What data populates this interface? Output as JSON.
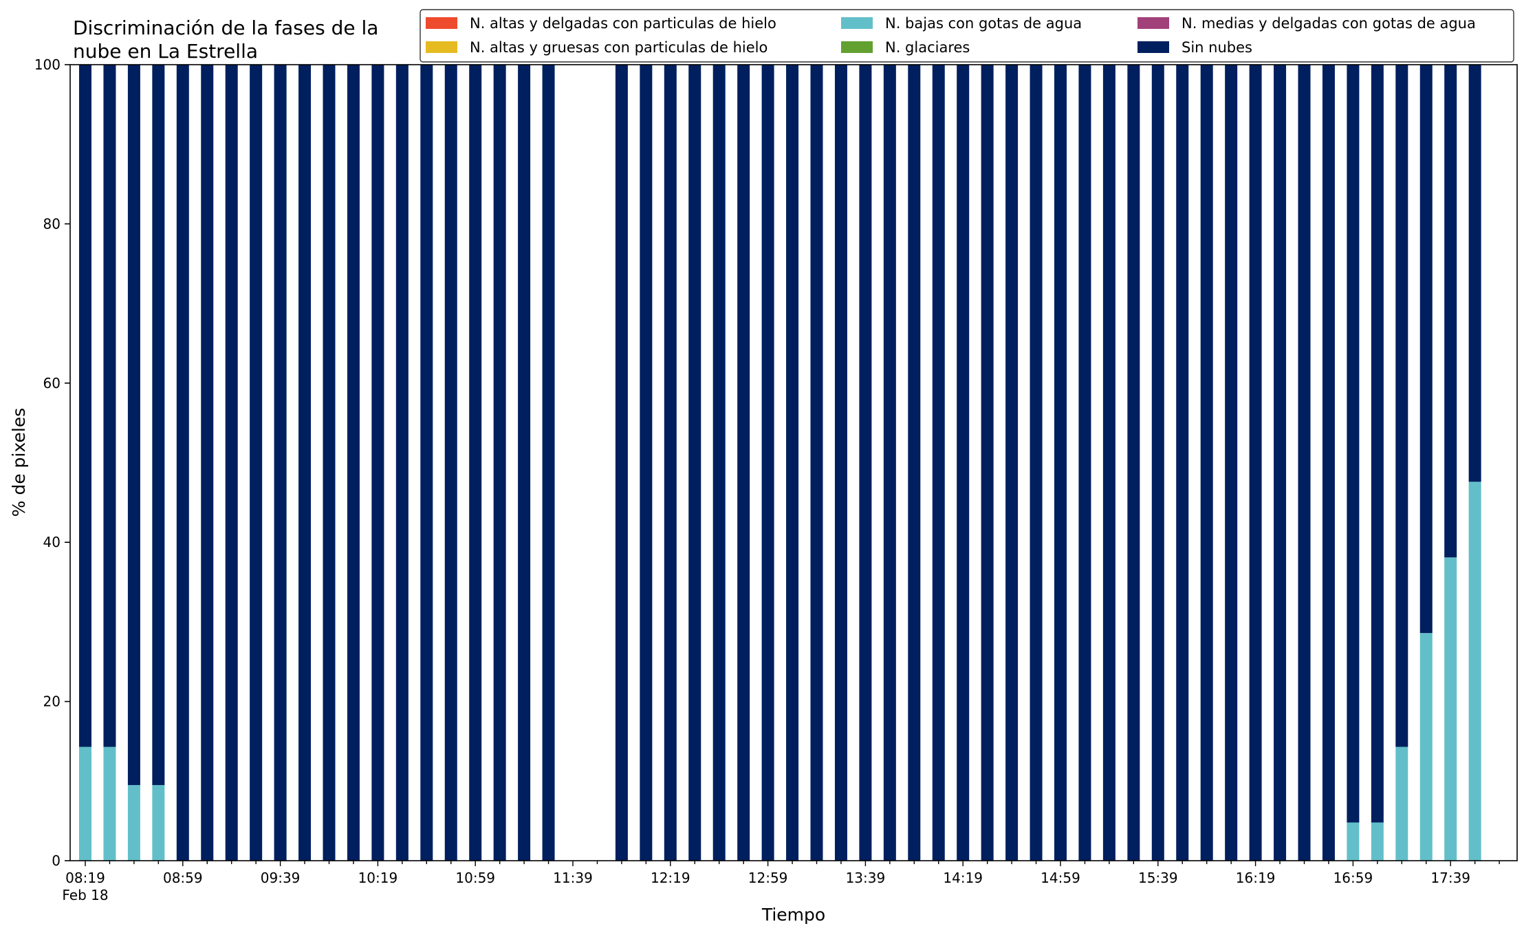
{
  "chart_data": {
    "type": "bar",
    "stacked": true,
    "title_lines": [
      "Discriminación de la fases de la",
      "nube en La Estrella"
    ],
    "xlabel": "Tiempo",
    "ylabel": "% de pixeles",
    "ylim": [
      0,
      100
    ],
    "yticks": [
      0,
      20,
      40,
      60,
      80,
      100
    ],
    "legend_placement": "top-right",
    "legend_columns": 3,
    "series": [
      {
        "name": "N. altas y delgadas con particulas de hielo",
        "color": "#ee4a2d"
      },
      {
        "name": "N. altas y gruesas con particulas de hielo",
        "color": "#e6bb22"
      },
      {
        "name": "N. bajas con gotas de agua",
        "color": "#62bfca"
      },
      {
        "name": "N. glaciares",
        "color": "#62a030"
      },
      {
        "name": "N. medias y delgadas con gotas de agua",
        "color": "#a2407a"
      },
      {
        "name": "Sin nubes",
        "color": "#001f5f"
      }
    ],
    "x_interval_minutes": 10,
    "x_start": "08:19",
    "x_date_label": "Feb 18",
    "x_tick_labels": [
      "08:19",
      "08:59",
      "09:39",
      "10:19",
      "10:59",
      "11:39",
      "12:19",
      "12:59",
      "13:39",
      "14:19",
      "14:59",
      "15:39",
      "16:19",
      "16:59",
      "17:39"
    ],
    "x": [
      "08:19",
      "08:29",
      "08:39",
      "08:49",
      "08:59",
      "09:09",
      "09:19",
      "09:29",
      "09:39",
      "09:49",
      "09:59",
      "10:09",
      "10:19",
      "10:29",
      "10:39",
      "10:49",
      "10:59",
      "11:09",
      "11:19",
      "11:29",
      "11:39",
      "11:49",
      "11:59",
      "12:09",
      "12:19",
      "12:29",
      "12:39",
      "12:49",
      "12:59",
      "13:09",
      "13:19",
      "13:29",
      "13:39",
      "13:49",
      "13:59",
      "14:09",
      "14:19",
      "14:29",
      "14:39",
      "14:49",
      "14:59",
      "15:09",
      "15:19",
      "15:29",
      "15:39",
      "15:49",
      "15:59",
      "16:09",
      "16:19",
      "16:29",
      "16:39",
      "16:49",
      "16:59",
      "17:09",
      "17:19",
      "17:29",
      "17:39",
      "17:49"
    ],
    "values": {
      "N. bajas con gotas de agua": [
        14.3,
        14.3,
        9.5,
        9.5,
        0,
        0,
        0,
        0,
        0,
        0,
        0,
        0,
        0,
        0,
        0,
        0,
        0,
        0,
        0,
        0,
        null,
        null,
        0,
        0,
        0,
        0,
        0,
        0,
        0,
        0,
        0,
        0,
        0,
        0,
        0,
        0,
        0,
        0,
        0,
        0,
        0,
        0,
        0,
        0,
        0,
        0,
        0,
        0,
        0,
        0,
        0,
        0,
        4.8,
        4.8,
        14.3,
        28.6,
        38.1,
        47.6
      ],
      "Sin nubes": [
        85.7,
        85.7,
        90.5,
        90.5,
        100,
        100,
        100,
        100,
        100,
        100,
        100,
        100,
        100,
        100,
        100,
        100,
        100,
        100,
        100,
        100,
        null,
        null,
        100,
        100,
        100,
        100,
        100,
        100,
        100,
        100,
        100,
        100,
        100,
        100,
        100,
        100,
        100,
        100,
        100,
        100,
        100,
        100,
        100,
        100,
        100,
        100,
        100,
        100,
        100,
        100,
        100,
        100,
        95.2,
        95.2,
        85.7,
        71.4,
        61.9,
        52.4
      ]
    }
  }
}
